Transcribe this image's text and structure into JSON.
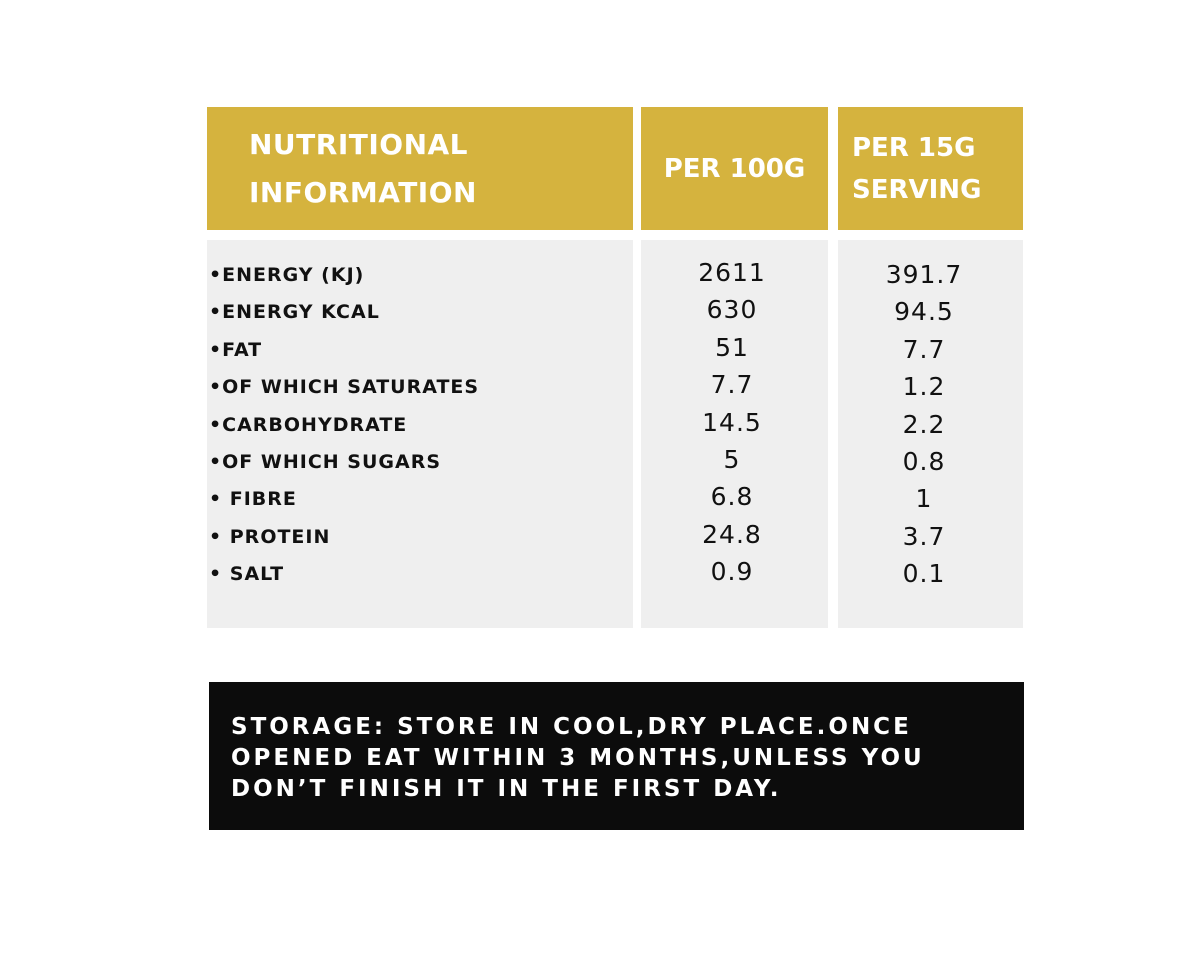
{
  "header": {
    "title": "NUTRITIONAL INFORMATION",
    "columns": [
      "PER 100G",
      "PER 15G SERVING"
    ]
  },
  "table": {
    "rows": [
      [
        "•ENERGY (KJ)",
        "2611",
        "391.7"
      ],
      [
        "•ENERGY KCAL",
        "630",
        "94.5"
      ],
      [
        "•FAT",
        "51",
        "7.7"
      ],
      [
        "•OF WHICH SATURATES",
        "7.7",
        "1.2"
      ],
      [
        "•CARBOHYDRATE",
        "14.5",
        "2.2"
      ],
      [
        "•OF WHICH SUGARS",
        "5",
        "0.8"
      ],
      [
        "• FIBRE",
        "6.8",
        "1"
      ],
      [
        "• PROTEIN",
        "24.8",
        "3.7"
      ],
      [
        "• SALT",
        "0.9",
        "0.1"
      ]
    ]
  },
  "storage": "STORAGE: STORE IN COOL,DRY PLACE.ONCE OPENED EAT WITHIN 3 MONTHS,UNLESS YOU DON’T FINISH IT IN THE FIRST DAY."
}
